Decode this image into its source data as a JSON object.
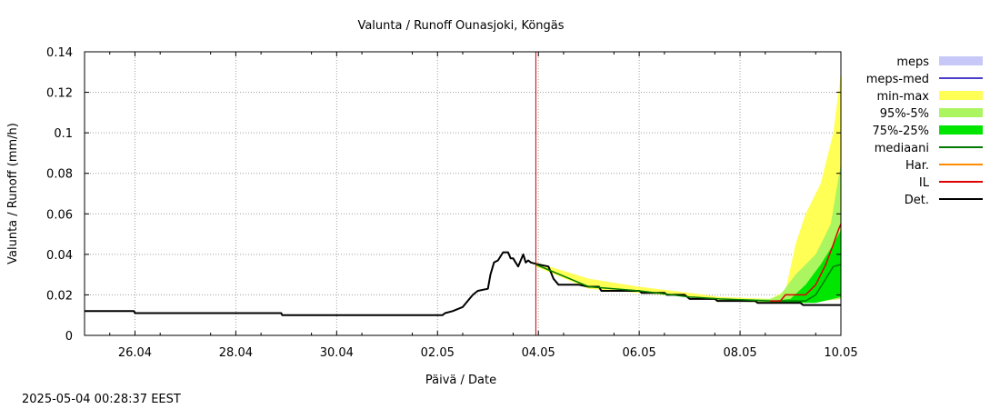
{
  "chart_data": {
    "type": "line",
    "title": "Valunta / Runoff  Ounasjoki, Köngäs",
    "xlabel": "Päivä / Date",
    "ylabel": "Valunta / Runoff (mm/h)",
    "timestamp": "2025-05-04 00:28:37 EEST",
    "x_unit": "days since 25.04 00:00",
    "xlim": [
      0,
      15.0
    ],
    "ylim": [
      0,
      0.14
    ],
    "grid": true,
    "legend_position": "right",
    "x_ticks": [
      {
        "x": 1,
        "label": "26.04"
      },
      {
        "x": 3,
        "label": "28.04"
      },
      {
        "x": 5,
        "label": "30.04"
      },
      {
        "x": 7,
        "label": "02.05"
      },
      {
        "x": 9,
        "label": "04.05"
      },
      {
        "x": 11,
        "label": "06.05"
      },
      {
        "x": 13,
        "label": "08.05"
      },
      {
        "x": 15,
        "label": "10.05"
      }
    ],
    "y_ticks": [
      {
        "y": 0,
        "label": "0"
      },
      {
        "y": 0.02,
        "label": "0.02"
      },
      {
        "y": 0.04,
        "label": "0.04"
      },
      {
        "y": 0.06,
        "label": "0.06"
      },
      {
        "y": 0.08,
        "label": "0.08"
      },
      {
        "y": 0.1,
        "label": "0.1"
      },
      {
        "y": 0.12,
        "label": "0.12"
      },
      {
        "y": 0.14,
        "label": "0.14"
      }
    ],
    "forecast_start_x": 8.95,
    "legend": [
      {
        "name": "meps",
        "kind": "band",
        "color": "#c8c8f8"
      },
      {
        "name": "meps-med",
        "kind": "line",
        "color": "#4a3ec8"
      },
      {
        "name": "min-max",
        "kind": "band",
        "color": "#ffff55"
      },
      {
        "name": "95%-5%",
        "kind": "band",
        "color": "#aaf560"
      },
      {
        "name": "75%-25%",
        "kind": "band",
        "color": "#00e600"
      },
      {
        "name": "mediaani",
        "kind": "line",
        "color": "#007a00"
      },
      {
        "name": "Har.",
        "kind": "line",
        "color": "#ff8c00"
      },
      {
        "name": "IL",
        "kind": "line",
        "color": "#dd0000"
      },
      {
        "name": "Det.",
        "kind": "line",
        "color": "#000000"
      }
    ],
    "bands": [
      {
        "name": "min-max",
        "color": "#ffff55",
        "upper": [
          [
            8.95,
            0.036
          ],
          [
            10,
            0.028
          ],
          [
            11,
            0.024
          ],
          [
            12,
            0.021
          ],
          [
            12.6,
            0.019
          ],
          [
            13.6,
            0.018
          ],
          [
            13.9,
            0.022
          ],
          [
            14.1,
            0.045
          ],
          [
            14.3,
            0.06
          ],
          [
            14.6,
            0.075
          ],
          [
            14.85,
            0.1
          ],
          [
            15,
            0.13
          ]
        ],
        "lower": [
          [
            15,
            0.018
          ],
          [
            14.3,
            0.016
          ],
          [
            13.6,
            0.016
          ],
          [
            13,
            0.017
          ],
          [
            12.6,
            0.017
          ],
          [
            12,
            0.019
          ],
          [
            11,
            0.021
          ],
          [
            10,
            0.023
          ],
          [
            8.95,
            0.034
          ]
        ]
      },
      {
        "name": "95%-5%",
        "color": "#aaf560",
        "upper": [
          [
            12.6,
            0.018
          ],
          [
            13.6,
            0.018
          ],
          [
            13.8,
            0.02
          ],
          [
            14.1,
            0.03
          ],
          [
            14.5,
            0.04
          ],
          [
            14.8,
            0.055
          ],
          [
            15,
            0.085
          ]
        ],
        "lower": [
          [
            15,
            0.018
          ],
          [
            14.3,
            0.016
          ],
          [
            13.6,
            0.016
          ],
          [
            12.6,
            0.017
          ]
        ]
      },
      {
        "name": "75%-25%",
        "color": "#00e600",
        "upper": [
          [
            13.6,
            0.017
          ],
          [
            14,
            0.018
          ],
          [
            14.3,
            0.025
          ],
          [
            14.6,
            0.035
          ],
          [
            14.85,
            0.045
          ],
          [
            15,
            0.052
          ]
        ],
        "lower": [
          [
            15,
            0.019
          ],
          [
            14.5,
            0.016
          ],
          [
            13.6,
            0.016
          ]
        ]
      }
    ],
    "series": [
      {
        "name": "Det.",
        "color": "#000000",
        "width": 2,
        "points": [
          [
            0,
            0.012
          ],
          [
            0.98,
            0.012
          ],
          [
            1,
            0.011
          ],
          [
            3.9,
            0.011
          ],
          [
            3.92,
            0.01
          ],
          [
            7.1,
            0.01
          ],
          [
            7.15,
            0.011
          ],
          [
            7.3,
            0.012
          ],
          [
            7.5,
            0.014
          ],
          [
            7.6,
            0.017
          ],
          [
            7.7,
            0.02
          ],
          [
            7.8,
            0.022
          ],
          [
            8,
            0.023
          ],
          [
            8.05,
            0.03
          ],
          [
            8.12,
            0.036
          ],
          [
            8.2,
            0.037
          ],
          [
            8.3,
            0.041
          ],
          [
            8.4,
            0.041
          ],
          [
            8.45,
            0.038
          ],
          [
            8.5,
            0.038
          ],
          [
            8.55,
            0.036
          ],
          [
            8.6,
            0.034
          ],
          [
            8.65,
            0.037
          ],
          [
            8.7,
            0.04
          ],
          [
            8.75,
            0.036
          ],
          [
            8.8,
            0.037
          ],
          [
            8.85,
            0.036
          ],
          [
            9.0,
            0.035
          ],
          [
            9.2,
            0.034
          ],
          [
            9.25,
            0.031
          ],
          [
            9.3,
            0.028
          ],
          [
            9.4,
            0.025
          ],
          [
            9.8,
            0.025
          ],
          [
            10,
            0.024
          ],
          [
            10.2,
            0.024
          ],
          [
            10.25,
            0.022
          ],
          [
            11,
            0.022
          ],
          [
            11.05,
            0.021
          ],
          [
            11.5,
            0.021
          ],
          [
            11.55,
            0.02
          ],
          [
            11.9,
            0.02
          ],
          [
            12,
            0.018
          ],
          [
            12.5,
            0.018
          ],
          [
            12.55,
            0.017
          ],
          [
            13.3,
            0.017
          ],
          [
            13.35,
            0.016
          ],
          [
            14.2,
            0.016
          ],
          [
            14.25,
            0.015
          ],
          [
            15,
            0.015
          ]
        ]
      },
      {
        "name": "mediaani",
        "color": "#007a00",
        "width": 1.5,
        "points": [
          [
            8.95,
            0.035
          ],
          [
            10,
            0.024
          ],
          [
            11,
            0.022
          ],
          [
            12,
            0.019
          ],
          [
            12.6,
            0.018
          ],
          [
            13.6,
            0.017
          ],
          [
            14.3,
            0.017
          ],
          [
            14.5,
            0.02
          ],
          [
            14.7,
            0.028
          ],
          [
            14.85,
            0.034
          ],
          [
            15,
            0.035
          ]
        ]
      },
      {
        "name": "IL",
        "color": "#dd0000",
        "width": 1.5,
        "points": [
          [
            13.6,
            0.017
          ],
          [
            13.8,
            0.017
          ],
          [
            13.9,
            0.02
          ],
          [
            14.3,
            0.02
          ],
          [
            14.5,
            0.025
          ],
          [
            14.7,
            0.035
          ],
          [
            14.85,
            0.045
          ],
          [
            14.95,
            0.052
          ],
          [
            15,
            0.055
          ]
        ]
      }
    ]
  }
}
